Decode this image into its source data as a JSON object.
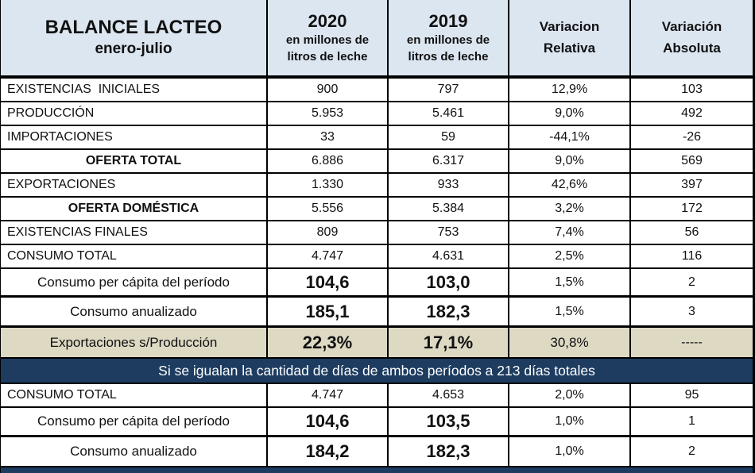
{
  "header": {
    "title": "BALANCE LACTEO",
    "subtitle": "enero-julio",
    "col2020_year": "2020",
    "col2020_unit": "en millones de\nlitros de leche",
    "col2019_year": "2019",
    "col2019_unit": "en millones de\nlitros de leche",
    "var_relativa": "Variacion\nRelativa",
    "var_absoluta": "Variación\nAbsoluta"
  },
  "rows": [
    {
      "label": "EXISTENCIAS  INICIALES",
      "y2020": "900",
      "y2019": "797",
      "var_rel": "12,9%",
      "var_abs": "103"
    },
    {
      "label": "PRODUCCIÓN",
      "y2020": "5.953",
      "y2019": "5.461",
      "var_rel": "9,0%",
      "var_abs": "492"
    },
    {
      "label": "IMPORTACIONES",
      "y2020": "33",
      "y2019": "59",
      "var_rel": "-44,1%",
      "var_abs": "-26"
    },
    {
      "label": "OFERTA TOTAL",
      "y2020": "6.886",
      "y2019": "6.317",
      "var_rel": "9,0%",
      "var_abs": "569"
    },
    {
      "label": "EXPORTACIONES",
      "y2020": "1.330",
      "y2019": "933",
      "var_rel": "42,6%",
      "var_abs": "397"
    },
    {
      "label": "OFERTA DOMÉSTICA",
      "y2020": "5.556",
      "y2019": "5.384",
      "var_rel": "3,2%",
      "var_abs": "172"
    },
    {
      "label": "EXISTENCIAS FINALES",
      "y2020": "809",
      "y2019": "753",
      "var_rel": "7,4%",
      "var_abs": "56"
    },
    {
      "label": "CONSUMO TOTAL",
      "y2020": "4.747",
      "y2019": "4.631",
      "var_rel": "2,5%",
      "var_abs": "116"
    },
    {
      "label": "Consumo per cápita del período",
      "y2020": "104,6",
      "y2019": "103,0",
      "var_rel": "1,5%",
      "var_abs": "2"
    },
    {
      "label": "Consumo anualizado",
      "y2020": "185,1",
      "y2019": "182,3",
      "var_rel": "1,5%",
      "var_abs": "3"
    },
    {
      "label": "Exportaciones s/Producción",
      "y2020": "22,3%",
      "y2019": "17,1%",
      "var_rel": "30,8%",
      "var_abs": "-----"
    }
  ],
  "banner": "Si se igualan la cantidad de días de ambos períodos a 213 días totales",
  "rows_adjusted": [
    {
      "label": "CONSUMO TOTAL",
      "y2020": "4.747",
      "y2019": "4.653",
      "var_rel": "2,0%",
      "var_abs": "95"
    },
    {
      "label": "Consumo per cápita del período",
      "y2020": "104,6",
      "y2019": "103,5",
      "var_rel": "1,0%",
      "var_abs": "1"
    },
    {
      "label": "Consumo anualizado",
      "y2020": "184,2",
      "y2019": "182,3",
      "var_rel": "1,0%",
      "var_abs": "2"
    }
  ],
  "colors": {
    "header_bg": "#dce6f1",
    "banner_bg": "#1d3c60",
    "banner_text": "#ffffff",
    "shaded_row_bg": "#ddd9c3",
    "border": "#000000"
  }
}
